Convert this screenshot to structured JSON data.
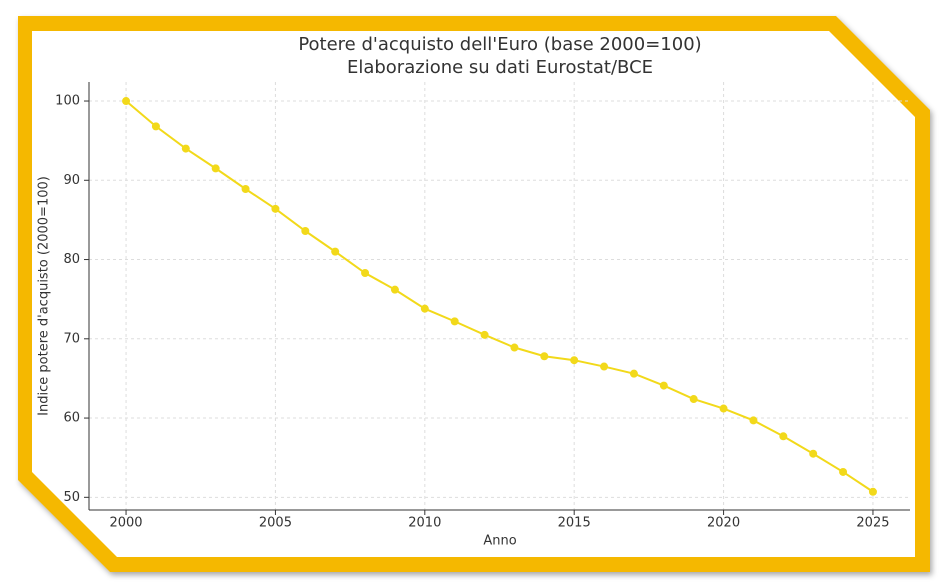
{
  "chart_data": {
    "type": "line",
    "title": "Potere d'acquisto dell'Euro (base 2000=100)",
    "subtitle": "Elaborazione su dati Eurostat/BCE",
    "x_label": "Anno",
    "y_label": "Indice potere d'acquisto (2000=100)",
    "x": [
      2000,
      2001,
      2002,
      2003,
      2004,
      2005,
      2006,
      2007,
      2008,
      2009,
      2010,
      2011,
      2012,
      2013,
      2014,
      2015,
      2016,
      2017,
      2018,
      2019,
      2020,
      2021,
      2022,
      2023,
      2024,
      2025
    ],
    "series": [
      {
        "name": "Potere d'acquisto",
        "color": "#f2d91a",
        "values": [
          100,
          96.8,
          94.0,
          91.5,
          88.9,
          86.4,
          83.6,
          81.0,
          78.3,
          76.2,
          73.8,
          72.2,
          70.5,
          68.9,
          67.8,
          67.3,
          66.5,
          65.6,
          64.1,
          62.4,
          61.2,
          59.7,
          57.7,
          55.5,
          53.2,
          50.7
        ]
      }
    ],
    "xlim": [
      1998.76,
      2026.24
    ],
    "xticks": [
      2000,
      2005,
      2010,
      2015,
      2020,
      2025
    ],
    "ylim": [
      48.4,
      102.4
    ],
    "yticks": [
      50,
      60,
      70,
      80,
      90,
      100
    ],
    "grid": true
  }
}
